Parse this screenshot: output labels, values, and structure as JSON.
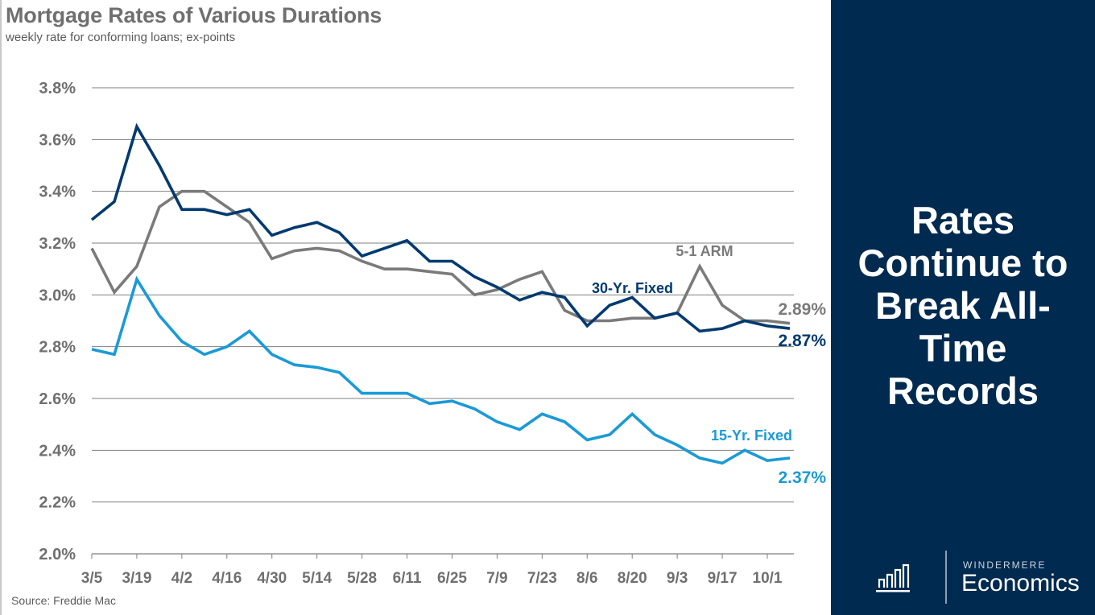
{
  "header": {
    "title": "Mortgage Rates of Various Durations",
    "subtitle": "weekly rate for conforming loans; ex-points"
  },
  "footer": {
    "source": "Source: Freddie Mac"
  },
  "side_panel": {
    "headline_lines": [
      "Rates",
      "Continue to",
      "Break All-",
      "Time",
      "Records"
    ],
    "background_color": "#002a4f",
    "logo_small_text": "WINDERMERE",
    "logo_big_text": "Economics",
    "logo_icon": "bar-chart-icon"
  },
  "chart_data": {
    "type": "line",
    "title": "Mortgage Rates of Various Durations",
    "subtitle": "weekly rate for conforming loans; ex-points",
    "xlabel": "",
    "ylabel": "",
    "ylim": [
      2.0,
      3.8
    ],
    "yticks": [
      2.0,
      2.2,
      2.4,
      2.6,
      2.8,
      3.0,
      3.2,
      3.4,
      3.6,
      3.8
    ],
    "ytick_labels": [
      "2.0%",
      "2.2%",
      "2.4%",
      "2.6%",
      "2.8%",
      "3.0%",
      "3.2%",
      "3.4%",
      "3.6%",
      "3.8%"
    ],
    "xtick_labels": [
      "3/5",
      "3/19",
      "4/2",
      "4/16",
      "4/30",
      "5/14",
      "5/28",
      "6/11",
      "6/25",
      "7/9",
      "7/23",
      "8/6",
      "8/20",
      "9/3",
      "9/17",
      "10/1"
    ],
    "x": [
      "3/5",
      "3/12",
      "3/19",
      "3/26",
      "4/2",
      "4/9",
      "4/16",
      "4/23",
      "4/30",
      "5/7",
      "5/14",
      "5/21",
      "5/28",
      "6/4",
      "6/11",
      "6/18",
      "6/25",
      "7/2",
      "7/9",
      "7/16",
      "7/23",
      "7/30",
      "8/6",
      "8/13",
      "8/20",
      "8/27",
      "9/3",
      "9/10",
      "9/17",
      "9/24",
      "10/1",
      "10/8"
    ],
    "grid": true,
    "legend": "inline-labels",
    "series": [
      {
        "name": "30-Yr. Fixed",
        "color": "#003a70",
        "end_label": "2.87%",
        "values": [
          3.29,
          3.36,
          3.65,
          3.5,
          3.33,
          3.33,
          3.31,
          3.33,
          3.23,
          3.26,
          3.28,
          3.24,
          3.15,
          3.18,
          3.21,
          3.13,
          3.13,
          3.07,
          3.03,
          2.98,
          3.01,
          2.99,
          2.88,
          2.96,
          2.99,
          2.91,
          2.93,
          2.86,
          2.87,
          2.9,
          2.88,
          2.87
        ]
      },
      {
        "name": "5-1 ARM",
        "color": "#7a7a7a",
        "end_label": "2.89%",
        "values": [
          3.18,
          3.01,
          3.11,
          3.34,
          3.4,
          3.4,
          3.34,
          3.28,
          3.14,
          3.17,
          3.18,
          3.17,
          3.13,
          3.1,
          3.1,
          3.09,
          3.08,
          3.0,
          3.02,
          3.06,
          3.09,
          2.94,
          2.9,
          2.9,
          2.91,
          2.91,
          2.93,
          3.11,
          2.96,
          2.9,
          2.9,
          2.89
        ]
      },
      {
        "name": "15-Yr. Fixed",
        "color": "#1a9ad6",
        "end_label": "2.37%",
        "values": [
          2.79,
          2.77,
          3.06,
          2.92,
          2.82,
          2.77,
          2.8,
          2.86,
          2.77,
          2.73,
          2.72,
          2.7,
          2.62,
          2.62,
          2.62,
          2.58,
          2.59,
          2.56,
          2.51,
          2.48,
          2.54,
          2.51,
          2.44,
          2.46,
          2.54,
          2.46,
          2.42,
          2.37,
          2.35,
          2.4,
          2.36,
          2.37
        ]
      }
    ]
  }
}
